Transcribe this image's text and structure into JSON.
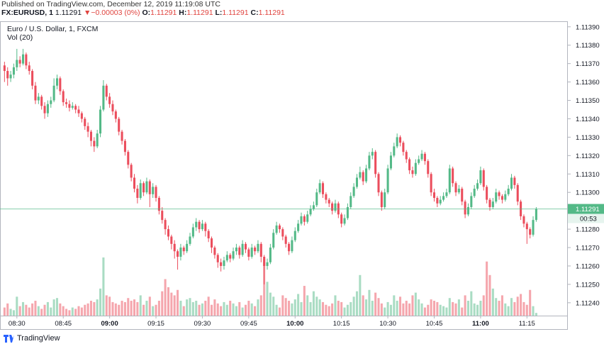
{
  "header": {
    "published": "Published on TradingView.com, December 12, 2019 11:19:08 UTC",
    "symbol": "FX:EURUSD, 1",
    "price": "1.11291",
    "arrow": "▼",
    "change": "−0.00003 (0%)",
    "o_label": "O:",
    "o": "1.11291",
    "h_label": "H:",
    "h": "1.11291",
    "l_label": "L:",
    "l": "1.11291",
    "c_label": "C:",
    "c": "1.11291"
  },
  "chart_data": {
    "type": "candlestick",
    "title": "Euro / U.S. Dollar, 1, FXCM",
    "volume_label": "Vol (20)",
    "up_color": "#53b987",
    "down_color": "#eb4d5c",
    "grid": true,
    "x": [
      "08:26",
      "08:27",
      "08:28",
      "08:29",
      "08:30",
      "08:31",
      "08:32",
      "08:33",
      "08:34",
      "08:35",
      "08:36",
      "08:37",
      "08:38",
      "08:39",
      "08:40",
      "08:41",
      "08:42",
      "08:43",
      "08:44",
      "08:45",
      "08:46",
      "08:47",
      "08:48",
      "08:49",
      "08:50",
      "08:51",
      "08:52",
      "08:53",
      "08:54",
      "08:55",
      "08:56",
      "08:57",
      "08:58",
      "08:59",
      "09:00",
      "09:01",
      "09:02",
      "09:03",
      "09:04",
      "09:05",
      "09:06",
      "09:07",
      "09:08",
      "09:09",
      "09:10",
      "09:11",
      "09:12",
      "09:13",
      "09:14",
      "09:15",
      "09:16",
      "09:17",
      "09:18",
      "09:19",
      "09:20",
      "09:21",
      "09:22",
      "09:23",
      "09:24",
      "09:25",
      "09:26",
      "09:27",
      "09:28",
      "09:29",
      "09:30",
      "09:31",
      "09:32",
      "09:33",
      "09:34",
      "09:35",
      "09:36",
      "09:37",
      "09:38",
      "09:39",
      "09:40",
      "09:41",
      "09:42",
      "09:43",
      "09:44",
      "09:45",
      "09:46",
      "09:47",
      "09:48",
      "09:49",
      "09:50",
      "09:51",
      "09:52",
      "09:53",
      "09:54",
      "09:55",
      "09:56",
      "09:57",
      "09:58",
      "09:59",
      "10:00",
      "10:01",
      "10:02",
      "10:03",
      "10:04",
      "10:05",
      "10:06",
      "10:07",
      "10:08",
      "10:09",
      "10:10",
      "10:11",
      "10:12",
      "10:13",
      "10:14",
      "10:15",
      "10:16",
      "10:17",
      "10:18",
      "10:19",
      "10:20",
      "10:21",
      "10:22",
      "10:23",
      "10:24",
      "10:25",
      "10:26",
      "10:27",
      "10:28",
      "10:29",
      "10:30",
      "10:31",
      "10:32",
      "10:33",
      "10:34",
      "10:35",
      "10:36",
      "10:37",
      "10:38",
      "10:39",
      "10:40",
      "10:41",
      "10:42",
      "10:43",
      "10:44",
      "10:45",
      "10:46",
      "10:47",
      "10:48",
      "10:49",
      "10:50",
      "10:51",
      "10:52",
      "10:53",
      "10:54",
      "10:55",
      "10:56",
      "10:57",
      "10:58",
      "10:59",
      "11:00",
      "11:01",
      "11:02",
      "11:03",
      "11:04",
      "11:05",
      "11:06",
      "11:07",
      "11:08",
      "11:09",
      "11:10",
      "11:11",
      "11:12",
      "11:13",
      "11:14",
      "11:15",
      "11:16",
      "11:17",
      "11:18"
    ],
    "open": [
      1.11369,
      1.11366,
      1.11362,
      1.11364,
      1.11368,
      1.11372,
      1.1137,
      1.11375,
      1.11369,
      1.11366,
      1.11358,
      1.1135,
      1.11352,
      1.11347,
      1.11343,
      1.11348,
      1.1135,
      1.11358,
      1.11362,
      1.11355,
      1.11349,
      1.11348,
      1.11346,
      1.11347,
      1.11345,
      1.11343,
      1.1134,
      1.11336,
      1.11333,
      1.11328,
      1.11325,
      1.11332,
      1.11345,
      1.11358,
      1.11352,
      1.11348,
      1.11344,
      1.1134,
      1.11333,
      1.11328,
      1.11322,
      1.11315,
      1.11308,
      1.11302,
      1.11297,
      1.11305,
      1.113,
      1.11306,
      1.11299,
      1.11303,
      1.11297,
      1.1129,
      1.11285,
      1.1128,
      1.11276,
      1.11272,
      1.11268,
      1.11265,
      1.1127,
      1.11268,
      1.11272,
      1.11276,
      1.11281,
      1.11284,
      1.1128,
      1.11283,
      1.11279,
      1.11275,
      1.1127,
      1.11266,
      1.11262,
      1.1126,
      1.11263,
      1.11266,
      1.11264,
      1.11268,
      1.1127,
      1.11266,
      1.11272,
      1.11269,
      1.11265,
      1.1127,
      1.11268,
      1.11272,
      1.11265,
      1.1126,
      1.11262,
      1.1127,
      1.11278,
      1.11282,
      1.1128,
      1.11276,
      1.11272,
      1.11268,
      1.11274,
      1.11279,
      1.11283,
      1.11287,
      1.11284,
      1.11288,
      1.11291,
      1.11293,
      1.113,
      1.11305,
      1.11299,
      1.11296,
      1.11294,
      1.1129,
      1.11294,
      1.11288,
      1.11283,
      1.11286,
      1.11292,
      1.11298,
      1.11303,
      1.11308,
      1.11311,
      1.11306,
      1.11313,
      1.1132,
      1.11322,
      1.1131,
      1.113,
      1.11292,
      1.113,
      1.11313,
      1.1132,
      1.11325,
      1.1133,
      1.11327,
      1.11322,
      1.11318,
      1.11312,
      1.1131,
      1.11316,
      1.11318,
      1.11321,
      1.11317,
      1.1131,
      1.113,
      1.11297,
      1.11294,
      1.11296,
      1.11298,
      1.113,
      1.11313,
      1.11305,
      1.113,
      1.11302,
      1.11295,
      1.11288,
      1.11292,
      1.11298,
      1.11302,
      1.11305,
      1.11312,
      1.11303,
      1.11296,
      1.11292,
      1.11295,
      1.113,
      1.11298,
      1.11296,
      1.11299,
      1.11302,
      1.11308,
      1.11304,
      1.11295,
      1.11287,
      1.11283,
      1.1128,
      1.11277,
      1.11285
    ],
    "high": [
      1.11371,
      1.11368,
      1.11366,
      1.1137,
      1.11378,
      1.11374,
      1.11378,
      1.11376,
      1.11371,
      1.11367,
      1.1136,
      1.11354,
      1.11353,
      1.11349,
      1.1135,
      1.11352,
      1.11362,
      1.11364,
      1.11363,
      1.11356,
      1.11351,
      1.1135,
      1.11349,
      1.11348,
      1.11347,
      1.11344,
      1.11341,
      1.11338,
      1.11334,
      1.1133,
      1.11334,
      1.11347,
      1.11361,
      1.11359,
      1.11354,
      1.1135,
      1.11345,
      1.11341,
      1.11334,
      1.11329,
      1.11323,
      1.11316,
      1.1131,
      1.11304,
      1.11307,
      1.11306,
      1.11308,
      1.11307,
      1.11305,
      1.11304,
      1.11298,
      1.11292,
      1.11286,
      1.11282,
      1.11277,
      1.11274,
      1.11269,
      1.11272,
      1.11271,
      1.11274,
      1.11278,
      1.11283,
      1.11286,
      1.11285,
      1.11285,
      1.11284,
      1.1128,
      1.11276,
      1.11271,
      1.11267,
      1.11264,
      1.11265,
      1.11268,
      1.11267,
      1.1127,
      1.11272,
      1.11271,
      1.11274,
      1.11273,
      1.1127,
      1.11272,
      1.11271,
      1.11274,
      1.11273,
      1.11266,
      1.11264,
      1.11272,
      1.1128,
      1.11284,
      1.11283,
      1.11281,
      1.11277,
      1.11273,
      1.11276,
      1.11281,
      1.11285,
      1.11289,
      1.11288,
      1.1129,
      1.11293,
      1.11295,
      1.11302,
      1.11307,
      1.11306,
      1.113,
      1.11297,
      1.11295,
      1.11296,
      1.11295,
      1.11289,
      1.11288,
      1.11294,
      1.113,
      1.11305,
      1.1131,
      1.11314,
      1.11312,
      1.11315,
      1.11322,
      1.11324,
      1.11323,
      1.11311,
      1.11301,
      1.11302,
      1.11315,
      1.11322,
      1.11327,
      1.11332,
      1.11331,
      1.11328,
      1.11323,
      1.11319,
      1.11314,
      1.11318,
      1.1132,
      1.11323,
      1.11322,
      1.11318,
      1.11311,
      1.11302,
      1.11298,
      1.11298,
      1.113,
      1.11302,
      1.11315,
      1.11314,
      1.11306,
      1.11304,
      1.11303,
      1.11296,
      1.11294,
      1.113,
      1.11304,
      1.11307,
      1.11314,
      1.11313,
      1.11304,
      1.11297,
      1.11297,
      1.11302,
      1.11301,
      1.11299,
      1.11301,
      1.11304,
      1.1131,
      1.11309,
      1.11305,
      1.11296,
      1.11288,
      1.11284,
      1.11281,
      1.11287,
      1.11292
    ],
    "low": [
      1.1136,
      1.11358,
      1.1136,
      1.11362,
      1.11366,
      1.11368,
      1.11369,
      1.11367,
      1.11364,
      1.11356,
      1.11348,
      1.11348,
      1.11345,
      1.1134,
      1.11341,
      1.11346,
      1.11349,
      1.11356,
      1.11353,
      1.11347,
      1.11346,
      1.11344,
      1.11345,
      1.11343,
      1.11341,
      1.11338,
      1.11334,
      1.1133,
      1.11325,
      1.11322,
      1.11324,
      1.1133,
      1.11344,
      1.1135,
      1.11346,
      1.11342,
      1.11338,
      1.11331,
      1.11326,
      1.1132,
      1.11313,
      1.11306,
      1.113,
      1.11294,
      1.11296,
      1.11298,
      1.11299,
      1.11292,
      1.11297,
      1.11295,
      1.11288,
      1.11283,
      1.11277,
      1.11274,
      1.11269,
      1.11264,
      1.11258,
      1.11263,
      1.11266,
      1.11267,
      1.11271,
      1.11275,
      1.11279,
      1.11278,
      1.11279,
      1.11276,
      1.11273,
      1.11267,
      1.11264,
      1.11259,
      1.11257,
      1.11258,
      1.11262,
      1.11262,
      1.11263,
      1.11266,
      1.11264,
      1.11265,
      1.11267,
      1.11263,
      1.11264,
      1.11266,
      1.11267,
      1.11262,
      1.1125,
      1.11258,
      1.11261,
      1.11269,
      1.11277,
      1.11278,
      1.11274,
      1.1127,
      1.11266,
      1.11267,
      1.11273,
      1.11278,
      1.11282,
      1.11282,
      1.11283,
      1.11287,
      1.1129,
      1.11292,
      1.11299,
      1.11297,
      1.11294,
      1.11292,
      1.11288,
      1.11289,
      1.11286,
      1.11281,
      1.11282,
      1.11285,
      1.11291,
      1.11297,
      1.11302,
      1.11307,
      1.11304,
      1.11305,
      1.11312,
      1.11318,
      1.11308,
      1.11298,
      1.1129,
      1.11291,
      1.11299,
      1.11312,
      1.11319,
      1.11324,
      1.11325,
      1.1132,
      1.11316,
      1.1131,
      1.11308,
      1.11309,
      1.11315,
      1.11317,
      1.11315,
      1.11308,
      1.11298,
      1.11295,
      1.11292,
      1.11293,
      1.11295,
      1.11297,
      1.11299,
      1.11303,
      1.11298,
      1.11299,
      1.11293,
      1.11286,
      1.11287,
      1.11291,
      1.11297,
      1.11301,
      1.11304,
      1.11301,
      1.11294,
      1.1129,
      1.11291,
      1.11294,
      1.11296,
      1.11294,
      1.11295,
      1.11298,
      1.11301,
      1.11302,
      1.11293,
      1.11285,
      1.11281,
      1.11272,
      1.11275,
      1.11276,
      1.11284
    ],
    "close": [
      1.11366,
      1.11362,
      1.11364,
      1.11368,
      1.11372,
      1.1137,
      1.11375,
      1.11369,
      1.11366,
      1.11358,
      1.1135,
      1.11352,
      1.11347,
      1.11343,
      1.11348,
      1.1135,
      1.11358,
      1.11362,
      1.11355,
      1.11349,
      1.11348,
      1.11346,
      1.11347,
      1.11345,
      1.11343,
      1.1134,
      1.11336,
      1.11333,
      1.11328,
      1.11325,
      1.11332,
      1.11345,
      1.11358,
      1.11352,
      1.11348,
      1.11344,
      1.1134,
      1.11333,
      1.11328,
      1.11322,
      1.11315,
      1.11308,
      1.11302,
      1.11297,
      1.11305,
      1.113,
      1.11306,
      1.11299,
      1.11303,
      1.11297,
      1.1129,
      1.11285,
      1.1128,
      1.11276,
      1.11272,
      1.11268,
      1.11265,
      1.1127,
      1.11268,
      1.11272,
      1.11276,
      1.11281,
      1.11284,
      1.1128,
      1.11283,
      1.11279,
      1.11275,
      1.1127,
      1.11266,
      1.11262,
      1.1126,
      1.11263,
      1.11266,
      1.11264,
      1.11268,
      1.1127,
      1.11266,
      1.11272,
      1.11269,
      1.11265,
      1.1127,
      1.11268,
      1.11272,
      1.11265,
      1.1126,
      1.11262,
      1.1127,
      1.11278,
      1.11282,
      1.1128,
      1.11276,
      1.11272,
      1.11268,
      1.11274,
      1.11279,
      1.11283,
      1.11287,
      1.11284,
      1.11288,
      1.11291,
      1.11293,
      1.113,
      1.11305,
      1.11299,
      1.11296,
      1.11294,
      1.1129,
      1.11294,
      1.11288,
      1.11283,
      1.11286,
      1.11292,
      1.11298,
      1.11303,
      1.11308,
      1.11311,
      1.11306,
      1.11313,
      1.1132,
      1.11322,
      1.1131,
      1.113,
      1.11292,
      1.113,
      1.11313,
      1.1132,
      1.11325,
      1.1133,
      1.11327,
      1.11322,
      1.11318,
      1.11312,
      1.1131,
      1.11316,
      1.11318,
      1.11321,
      1.11317,
      1.1131,
      1.113,
      1.11297,
      1.11294,
      1.11296,
      1.11298,
      1.113,
      1.11313,
      1.11305,
      1.113,
      1.11302,
      1.11295,
      1.11288,
      1.11292,
      1.11298,
      1.11302,
      1.11305,
      1.11312,
      1.11303,
      1.11296,
      1.11292,
      1.11295,
      1.113,
      1.11298,
      1.11296,
      1.11299,
      1.11302,
      1.11308,
      1.11304,
      1.11295,
      1.11287,
      1.11283,
      1.1128,
      1.11277,
      1.11285,
      1.11291
    ],
    "volume": [
      12,
      18,
      10,
      8,
      28,
      14,
      20,
      16,
      12,
      18,
      22,
      14,
      10,
      16,
      20,
      12,
      24,
      26,
      18,
      14,
      10,
      8,
      12,
      10,
      14,
      12,
      16,
      18,
      22,
      20,
      24,
      40,
      86,
      30,
      28,
      20,
      18,
      16,
      22,
      20,
      26,
      22,
      24,
      20,
      30,
      16,
      22,
      28,
      14,
      16,
      22,
      36,
      54,
      42,
      34,
      30,
      38,
      22,
      14,
      24,
      26,
      20,
      22,
      16,
      18,
      22,
      28,
      16,
      24,
      18,
      14,
      20,
      16,
      22,
      18,
      14,
      20,
      12,
      16,
      22,
      18,
      14,
      24,
      30,
      84,
      50,
      34,
      28,
      16,
      12,
      30,
      26,
      22,
      18,
      24,
      32,
      20,
      44,
      30,
      20,
      36,
      28,
      24,
      20,
      16,
      14,
      18,
      30,
      22,
      20,
      12,
      16,
      20,
      28,
      36,
      60,
      30,
      24,
      38,
      22,
      34,
      26,
      18,
      12,
      20,
      16,
      30,
      22,
      28,
      18,
      22,
      18,
      30,
      34,
      24,
      18,
      12,
      16,
      24,
      22,
      20,
      16,
      14,
      12,
      26,
      20,
      18,
      24,
      12,
      30,
      22,
      36,
      18,
      16,
      22,
      30,
      80,
      60,
      40,
      26,
      22,
      30,
      18,
      14,
      26,
      20,
      28,
      32,
      20,
      16,
      38,
      14,
      4
    ],
    "xlim": [
      "08:25",
      "11:28"
    ],
    "xticks": [
      "08:30",
      "08:45",
      "09:00",
      "09:15",
      "09:30",
      "09:45",
      "10:00",
      "10:15",
      "10:30",
      "10:45",
      "11:00",
      "11:15"
    ],
    "ylim": [
      1.11233,
      1.11393
    ],
    "yticks": [
      {
        "value": 1.1124,
        "label": "1.11240"
      },
      {
        "value": 1.1125,
        "label": "1.11250"
      },
      {
        "value": 1.1126,
        "label": "1.11260"
      },
      {
        "value": 1.1127,
        "label": "1.11270"
      },
      {
        "value": 1.1128,
        "label": "1.11280"
      },
      {
        "value": 1.1129,
        "label": "1.11290"
      },
      {
        "value": 1.113,
        "label": "1.11300"
      },
      {
        "value": 1.1131,
        "label": "1.11310"
      },
      {
        "value": 1.1132,
        "label": "1.11320"
      },
      {
        "value": 1.1133,
        "label": "1.11330"
      },
      {
        "value": 1.1134,
        "label": "1.11340"
      },
      {
        "value": 1.1135,
        "label": "1.11350"
      },
      {
        "value": 1.1136,
        "label": "1.11360"
      },
      {
        "value": 1.1137,
        "label": "1.11370"
      },
      {
        "value": 1.1138,
        "label": "1.11380"
      },
      {
        "value": 1.1139,
        "label": "1.11390"
      }
    ],
    "last_price": {
      "value": 1.11291,
      "label": "1.11291"
    },
    "countdown": "00:53"
  },
  "footer": {
    "brand": "TradingView"
  }
}
